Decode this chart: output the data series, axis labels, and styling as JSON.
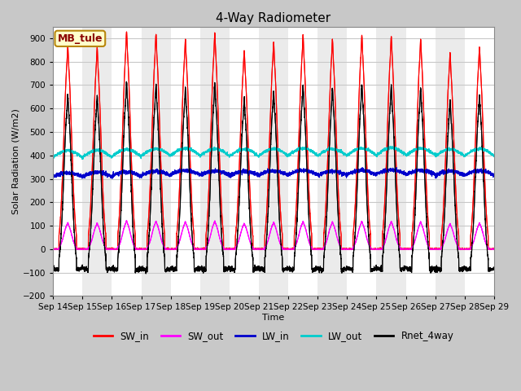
{
  "title": "4-Way Radiometer",
  "xlabel": "Time",
  "ylabel": "Solar Radiation (W/m2)",
  "ylim": [
    -200,
    950
  ],
  "yticks": [
    -200,
    -100,
    0,
    100,
    200,
    300,
    400,
    500,
    600,
    700,
    800,
    900
  ],
  "site_label": "MB_tule",
  "fig_bg_color": "#c8c8c8",
  "plot_bg_color": "#ffffff",
  "grid_color": "#d0d0d0",
  "colors": {
    "SW_in": "#ff0000",
    "SW_out": "#ff00ff",
    "LW_in": "#0000cc",
    "LW_out": "#00cccc",
    "Rnet_4way": "#000000"
  },
  "x_tick_labels": [
    "Sep 14",
    "Sep 15",
    "Sep 16",
    "Sep 17",
    "Sep 18",
    "Sep 19",
    "Sep 20",
    "Sep 21",
    "Sep 22",
    "Sep 23",
    "Sep 24",
    "Sep 25",
    "Sep 26",
    "Sep 27",
    "Sep 28",
    "Sep 29"
  ],
  "n_days": 15,
  "peak_SW_in": [
    805,
    795,
    860,
    850,
    830,
    855,
    785,
    820,
    845,
    830,
    845,
    840,
    830,
    775,
    800
  ],
  "lw_in_base": [
    308,
    310,
    312,
    315,
    318,
    316,
    314,
    316,
    318,
    315,
    318,
    320,
    318,
    315,
    316
  ],
  "lw_out_base": [
    390,
    392,
    395,
    398,
    400,
    398,
    396,
    398,
    400,
    398,
    400,
    402,
    400,
    396,
    398
  ]
}
